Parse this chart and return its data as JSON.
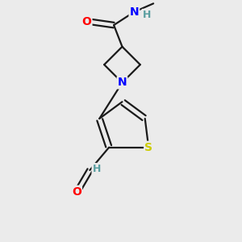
{
  "background_color": "#ebebeb",
  "bond_color": "#1a1a1a",
  "atom_colors": {
    "O": "#ff0000",
    "N": "#0000ff",
    "S": "#cccc00",
    "H": "#5a9ea0",
    "C": "#1a1a1a"
  },
  "figsize": [
    3.0,
    3.0
  ],
  "dpi": 100
}
